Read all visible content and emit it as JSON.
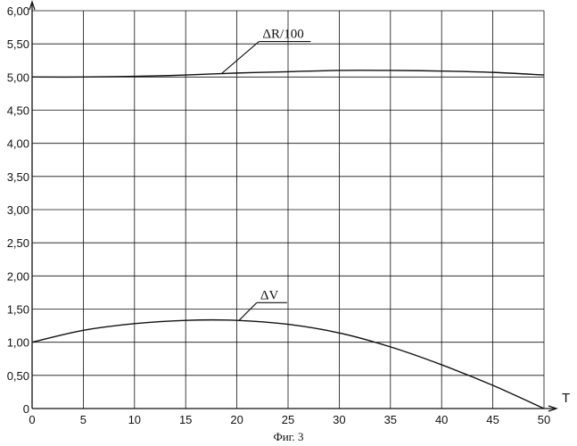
{
  "caption": "Фиг. 3",
  "chart_data": {
    "type": "line",
    "title": "",
    "xlabel": "T",
    "ylabel": "",
    "xlim": [
      0,
      50
    ],
    "ylim": [
      0,
      6
    ],
    "x_ticks": [
      0,
      5,
      10,
      15,
      20,
      25,
      30,
      35,
      40,
      45,
      50
    ],
    "x_tick_labels": [
      "0",
      "5",
      "10",
      "15",
      "20",
      "25",
      "30",
      "35",
      "40",
      "45",
      "50"
    ],
    "y_ticks": [
      0,
      0.5,
      1,
      1.5,
      2,
      2.5,
      3,
      3.5,
      4,
      4.5,
      5,
      5.5,
      6
    ],
    "y_tick_labels": [
      "0",
      "0,50",
      "1,00",
      "1,50",
      "2,00",
      "2,50",
      "3,00",
      "3,50",
      "4,00",
      "4,50",
      "5,00",
      "5,50",
      "6,00"
    ],
    "grid": true,
    "line_color": "#111111",
    "series": [
      {
        "name": "ΔR/100",
        "x": [
          0,
          5,
          10,
          15,
          20,
          25,
          30,
          35,
          40,
          45,
          50
        ],
        "values": [
          5.0,
          5.0,
          5.01,
          5.03,
          5.06,
          5.08,
          5.1,
          5.1,
          5.09,
          5.07,
          5.03
        ]
      },
      {
        "name": "ΔV",
        "x": [
          0,
          5,
          10,
          15,
          20,
          25,
          30,
          35,
          40,
          45,
          50
        ],
        "values": [
          1.0,
          1.18,
          1.28,
          1.33,
          1.33,
          1.27,
          1.14,
          0.93,
          0.66,
          0.35,
          0.0
        ]
      }
    ]
  }
}
